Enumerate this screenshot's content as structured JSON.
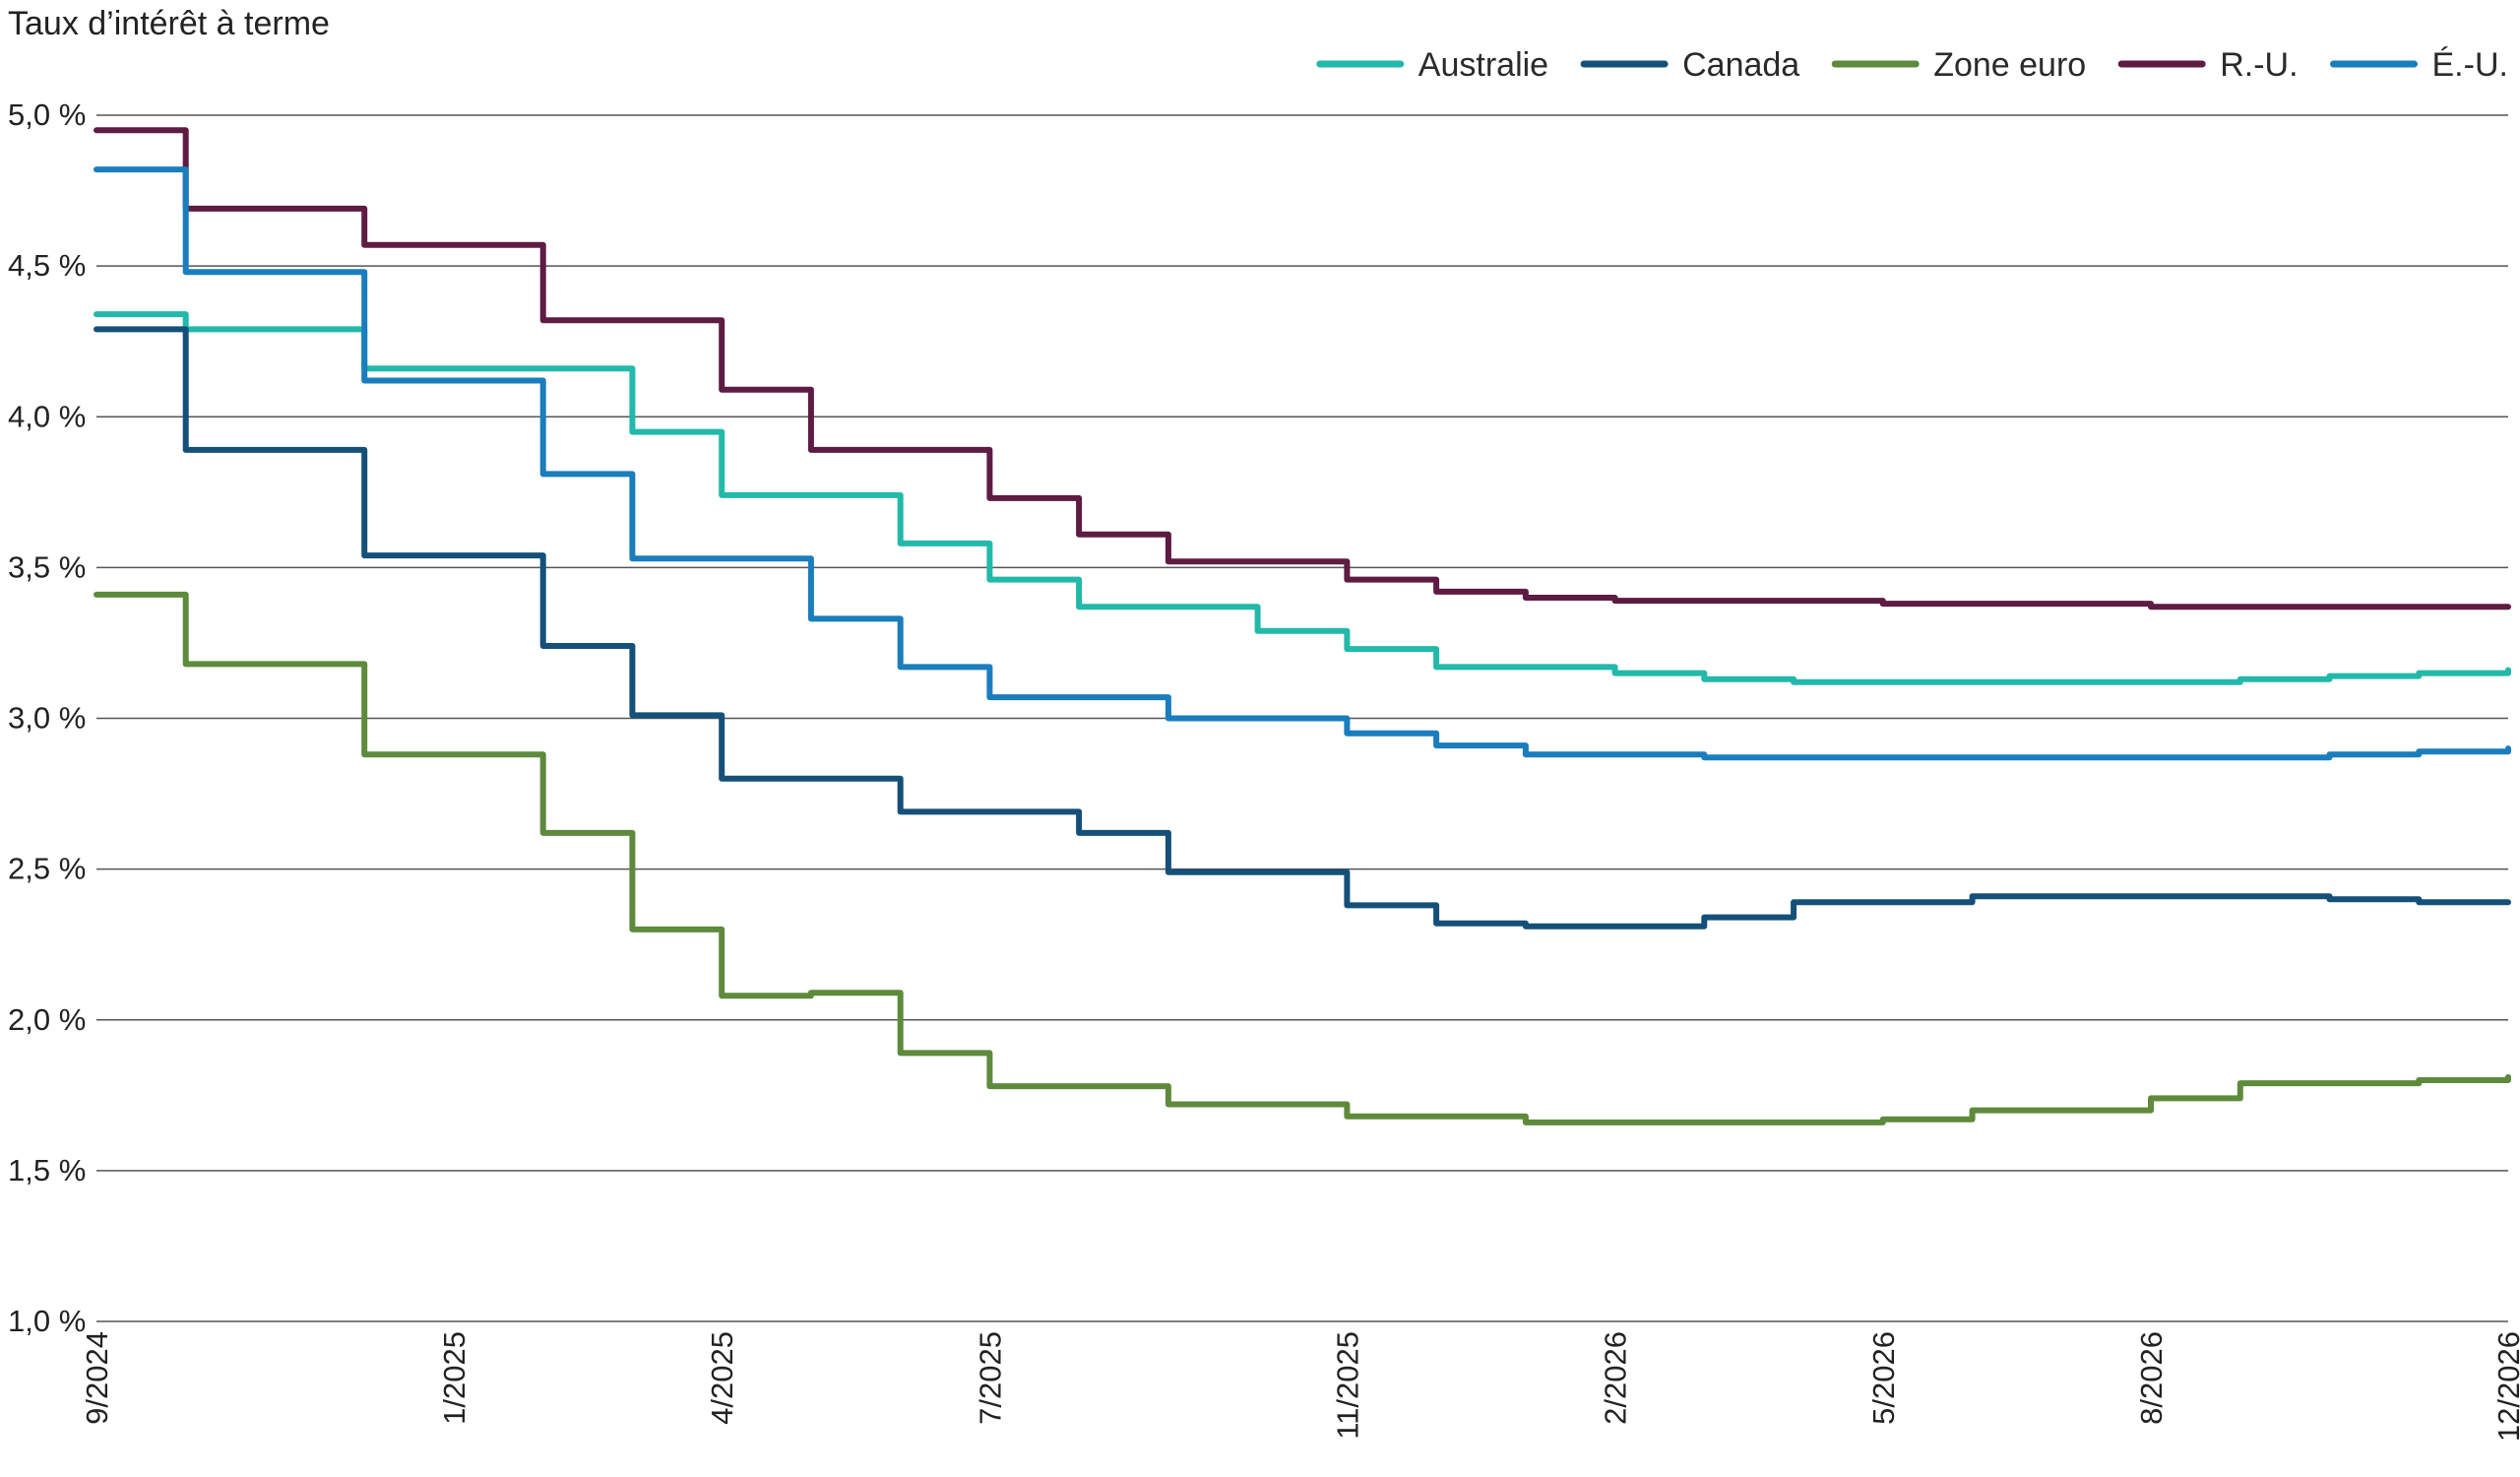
{
  "chart_data": {
    "type": "line",
    "ylabel": "Taux d’intérêt à terme",
    "ylim": [
      1.0,
      5.0
    ],
    "xlim": [
      "2024-09",
      "2026-12"
    ],
    "grid": true,
    "legend_position": "top-right",
    "y_ticks": [
      {
        "value": 1.0,
        "label": "1,0 %"
      },
      {
        "value": 1.5,
        "label": "1,5 %"
      },
      {
        "value": 2.0,
        "label": "2,0 %"
      },
      {
        "value": 2.5,
        "label": "2,5 %"
      },
      {
        "value": 3.0,
        "label": "3,0 %"
      },
      {
        "value": 3.5,
        "label": "3,5 %"
      },
      {
        "value": 4.0,
        "label": "4,0 %"
      },
      {
        "value": 4.5,
        "label": "4,5 %"
      },
      {
        "value": 5.0,
        "label": "5,0 %"
      }
    ],
    "x_ticks": [
      {
        "value": "2024-09",
        "label": "9/2024"
      },
      {
        "value": "2025-01",
        "label": "1/2025"
      },
      {
        "value": "2025-04",
        "label": "4/2025"
      },
      {
        "value": "2025-07",
        "label": "7/2025"
      },
      {
        "value": "2025-11",
        "label": "11/2025"
      },
      {
        "value": "2026-02",
        "label": "2/2026"
      },
      {
        "value": "2026-05",
        "label": "5/2026"
      },
      {
        "value": "2026-08",
        "label": "8/2026"
      },
      {
        "value": "2026-12",
        "label": "12/2026"
      }
    ],
    "series": [
      {
        "name": "Australie",
        "color": "#22b9aa",
        "x": [
          "2024-09",
          "2024-10",
          "2024-11",
          "2024-12",
          "2025-01",
          "2025-02",
          "2025-03",
          "2025-04",
          "2025-05",
          "2025-06",
          "2025-07",
          "2025-08",
          "2025-09",
          "2025-10",
          "2025-11",
          "2025-12",
          "2026-01",
          "2026-02",
          "2026-03",
          "2026-04",
          "2026-05",
          "2026-06",
          "2026-07",
          "2026-08",
          "2026-09",
          "2026-10",
          "2026-11",
          "2026-12"
        ],
        "values": [
          4.34,
          4.29,
          4.29,
          4.16,
          4.16,
          4.16,
          3.95,
          3.74,
          3.74,
          3.58,
          3.46,
          3.37,
          3.37,
          3.29,
          3.23,
          3.17,
          3.17,
          3.15,
          3.13,
          3.12,
          3.12,
          3.12,
          3.12,
          3.12,
          3.13,
          3.14,
          3.15,
          3.16
        ]
      },
      {
        "name": "Canada",
        "color": "#145079",
        "x": [
          "2024-09",
          "2024-10",
          "2024-11",
          "2024-12",
          "2025-01",
          "2025-02",
          "2025-03",
          "2025-04",
          "2025-05",
          "2025-06",
          "2025-07",
          "2025-08",
          "2025-09",
          "2025-10",
          "2025-11",
          "2025-12",
          "2026-01",
          "2026-02",
          "2026-03",
          "2026-04",
          "2026-05",
          "2026-06",
          "2026-07",
          "2026-08",
          "2026-09",
          "2026-10",
          "2026-11",
          "2026-12"
        ],
        "values": [
          4.29,
          3.89,
          3.89,
          3.54,
          3.54,
          3.24,
          3.01,
          2.8,
          2.8,
          2.69,
          2.69,
          2.62,
          2.49,
          2.49,
          2.38,
          2.32,
          2.31,
          2.31,
          2.34,
          2.39,
          2.39,
          2.41,
          2.41,
          2.41,
          2.41,
          2.4,
          2.39,
          2.39
        ]
      },
      {
        "name": "Zone euro",
        "color": "#5e8a3c",
        "x": [
          "2024-09",
          "2024-10",
          "2024-11",
          "2024-12",
          "2025-01",
          "2025-02",
          "2025-03",
          "2025-04",
          "2025-05",
          "2025-06",
          "2025-07",
          "2025-08",
          "2025-09",
          "2025-10",
          "2025-11",
          "2025-12",
          "2026-01",
          "2026-02",
          "2026-03",
          "2026-04",
          "2026-05",
          "2026-06",
          "2026-07",
          "2026-08",
          "2026-09",
          "2026-10",
          "2026-11",
          "2026-12"
        ],
        "values": [
          3.41,
          3.18,
          3.18,
          2.88,
          2.88,
          2.62,
          2.3,
          2.08,
          2.09,
          1.89,
          1.78,
          1.78,
          1.72,
          1.72,
          1.68,
          1.68,
          1.66,
          1.66,
          1.66,
          1.66,
          1.67,
          1.7,
          1.7,
          1.74,
          1.79,
          1.79,
          1.8,
          1.81
        ]
      },
      {
        "name": "R.-U.",
        "color": "#5e1b43",
        "x": [
          "2024-09",
          "2024-10",
          "2024-11",
          "2024-12",
          "2025-01",
          "2025-02",
          "2025-03",
          "2025-04",
          "2025-05",
          "2025-06",
          "2025-07",
          "2025-08",
          "2025-09",
          "2025-10",
          "2025-11",
          "2025-12",
          "2026-01",
          "2026-02",
          "2026-03",
          "2026-04",
          "2026-05",
          "2026-06",
          "2026-07",
          "2026-08",
          "2026-09",
          "2026-10",
          "2026-11",
          "2026-12"
        ],
        "values": [
          4.95,
          4.69,
          4.69,
          4.57,
          4.57,
          4.32,
          4.32,
          4.09,
          3.89,
          3.89,
          3.73,
          3.61,
          3.52,
          3.52,
          3.46,
          3.42,
          3.4,
          3.39,
          3.39,
          3.39,
          3.38,
          3.38,
          3.38,
          3.37,
          3.37,
          3.37,
          3.37,
          3.37
        ]
      },
      {
        "name": "É.-U.",
        "color": "#1a7dbd",
        "x": [
          "2024-09",
          "2024-10",
          "2024-11",
          "2024-12",
          "2025-01",
          "2025-02",
          "2025-03",
          "2025-04",
          "2025-05",
          "2025-06",
          "2025-07",
          "2025-08",
          "2025-09",
          "2025-10",
          "2025-11",
          "2025-12",
          "2026-01",
          "2026-02",
          "2026-03",
          "2026-04",
          "2026-05",
          "2026-06",
          "2026-07",
          "2026-08",
          "2026-09",
          "2026-10",
          "2026-11",
          "2026-12"
        ],
        "values": [
          4.82,
          4.48,
          4.48,
          4.12,
          4.12,
          3.81,
          3.53,
          3.53,
          3.33,
          3.17,
          3.07,
          3.07,
          3.0,
          3.0,
          2.95,
          2.91,
          2.88,
          2.88,
          2.87,
          2.87,
          2.87,
          2.87,
          2.87,
          2.87,
          2.87,
          2.88,
          2.89,
          2.9
        ]
      }
    ]
  }
}
